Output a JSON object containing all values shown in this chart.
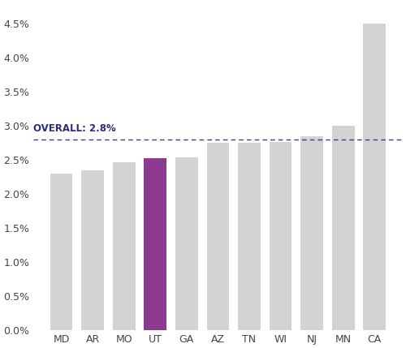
{
  "categories": [
    "MD",
    "AR",
    "MO",
    "UT",
    "GA",
    "AZ",
    "TN",
    "WI",
    "NJ",
    "MN",
    "CA"
  ],
  "values": [
    0.023,
    0.0235,
    0.0247,
    0.0252,
    0.0254,
    0.0275,
    0.0275,
    0.0277,
    0.0285,
    0.03,
    0.045
  ],
  "bar_colors": [
    "#d3d3d3",
    "#d3d3d3",
    "#d3d3d3",
    "#8b3a8f",
    "#d3d3d3",
    "#d3d3d3",
    "#d3d3d3",
    "#d3d3d3",
    "#d3d3d3",
    "#d3d3d3",
    "#d3d3d3"
  ],
  "overall_value": 0.028,
  "overall_label": "OVERALL: 2.8%",
  "overall_line_color": "#3a3a8c",
  "ylim": [
    0,
    0.048
  ],
  "yticks": [
    0.0,
    0.005,
    0.01,
    0.015,
    0.02,
    0.025,
    0.03,
    0.035,
    0.04,
    0.045
  ],
  "background_color": "#ffffff",
  "bar_edge_color": "none",
  "tick_label_color": "#444444",
  "overall_label_fontsize": 8.5,
  "overall_label_color": "#2e2e7a"
}
